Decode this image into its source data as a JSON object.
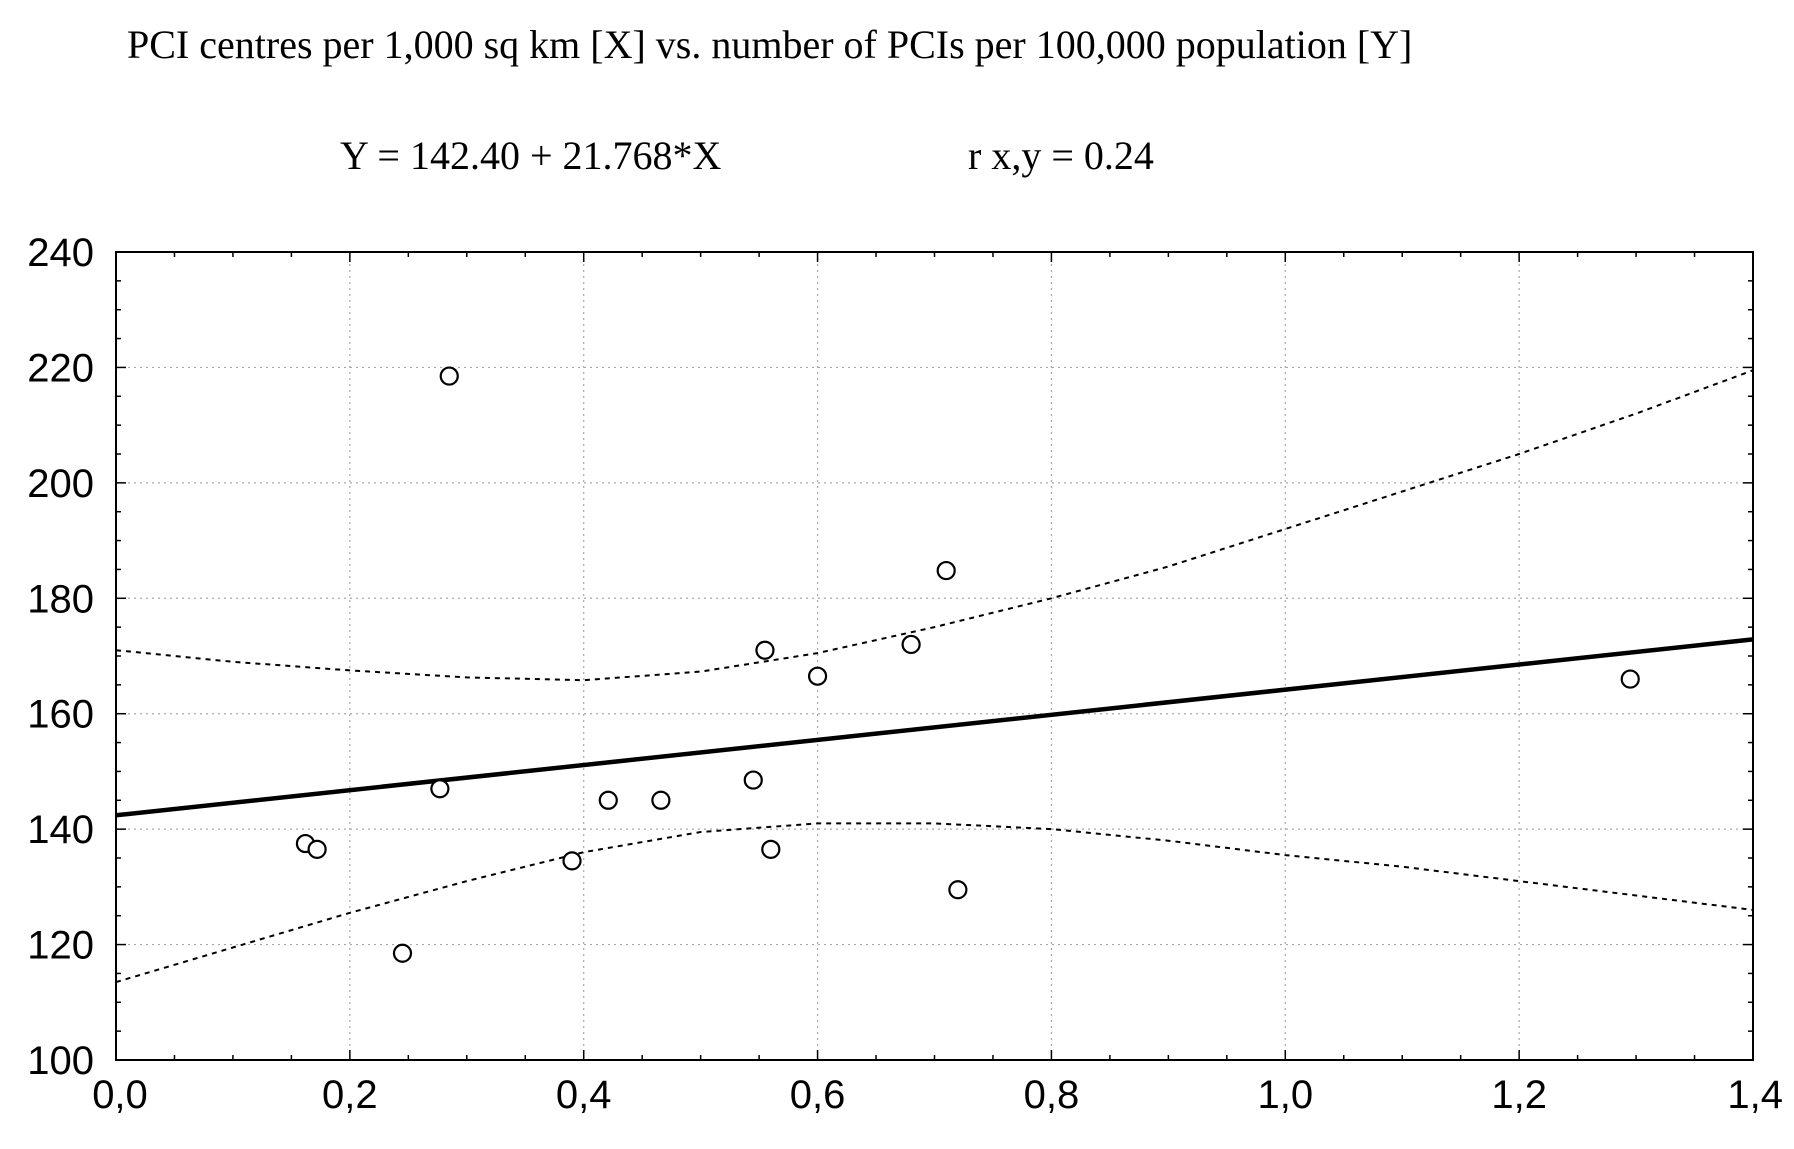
{
  "chart_data": {
    "type": "scatter",
    "title": "PCI centres per 1,000 sq km [X] vs. number of PCIs per 100,000 population [Y]",
    "equation": "Y = 142.40 + 21.768*X",
    "correlation": "r x,y = 0.24",
    "regression": {
      "intercept": 142.4,
      "slope": 21.768
    },
    "xlim": [
      0.0,
      1.4
    ],
    "ylim": [
      100,
      240
    ],
    "xticks": [
      {
        "value": 0.0,
        "label": "0,0"
      },
      {
        "value": 0.2,
        "label": "0,2"
      },
      {
        "value": 0.4,
        "label": "0,4"
      },
      {
        "value": 0.6,
        "label": "0,6"
      },
      {
        "value": 0.8,
        "label": "0,8"
      },
      {
        "value": 1.0,
        "label": "1,0"
      },
      {
        "value": 1.2,
        "label": "1,2"
      },
      {
        "value": 1.4,
        "label": "1,4"
      }
    ],
    "yticks": [
      {
        "value": 100,
        "label": "100"
      },
      {
        "value": 120,
        "label": "120"
      },
      {
        "value": 140,
        "label": "140"
      },
      {
        "value": 160,
        "label": "160"
      },
      {
        "value": 180,
        "label": "180"
      },
      {
        "value": 200,
        "label": "200"
      },
      {
        "value": 220,
        "label": "220"
      },
      {
        "value": 240,
        "label": "240"
      }
    ],
    "grid": true,
    "points": [
      {
        "x": 0.162,
        "y": 137.5
      },
      {
        "x": 0.172,
        "y": 136.5
      },
      {
        "x": 0.245,
        "y": 118.5
      },
      {
        "x": 0.277,
        "y": 147.0
      },
      {
        "x": 0.285,
        "y": 218.5
      },
      {
        "x": 0.39,
        "y": 134.5
      },
      {
        "x": 0.421,
        "y": 145.0
      },
      {
        "x": 0.466,
        "y": 145.0
      },
      {
        "x": 0.545,
        "y": 148.5
      },
      {
        "x": 0.555,
        "y": 171.0
      },
      {
        "x": 0.56,
        "y": 136.5
      },
      {
        "x": 0.6,
        "y": 166.5
      },
      {
        "x": 0.68,
        "y": 172.0
      },
      {
        "x": 0.71,
        "y": 184.8
      },
      {
        "x": 0.72,
        "y": 129.5
      },
      {
        "x": 1.295,
        "y": 166.0
      }
    ],
    "confidence_upper": [
      {
        "x": 0.0,
        "y": 171.0
      },
      {
        "x": 0.1,
        "y": 169.0
      },
      {
        "x": 0.2,
        "y": 167.5
      },
      {
        "x": 0.3,
        "y": 166.3
      },
      {
        "x": 0.4,
        "y": 165.8
      },
      {
        "x": 0.5,
        "y": 167.3
      },
      {
        "x": 0.6,
        "y": 170.5
      },
      {
        "x": 0.7,
        "y": 175.0
      },
      {
        "x": 0.8,
        "y": 180.0
      },
      {
        "x": 0.9,
        "y": 185.5
      },
      {
        "x": 1.0,
        "y": 192.0
      },
      {
        "x": 1.1,
        "y": 198.5
      },
      {
        "x": 1.2,
        "y": 205.0
      },
      {
        "x": 1.3,
        "y": 212.0
      },
      {
        "x": 1.4,
        "y": 219.5
      }
    ],
    "confidence_lower": [
      {
        "x": 0.0,
        "y": 113.5
      },
      {
        "x": 0.1,
        "y": 119.5
      },
      {
        "x": 0.2,
        "y": 125.5
      },
      {
        "x": 0.3,
        "y": 131.0
      },
      {
        "x": 0.4,
        "y": 136.0
      },
      {
        "x": 0.5,
        "y": 139.5
      },
      {
        "x": 0.6,
        "y": 141.0
      },
      {
        "x": 0.7,
        "y": 141.0
      },
      {
        "x": 0.8,
        "y": 140.0
      },
      {
        "x": 0.9,
        "y": 138.0
      },
      {
        "x": 1.0,
        "y": 135.5
      },
      {
        "x": 1.1,
        "y": 133.5
      },
      {
        "x": 1.2,
        "y": 131.0
      },
      {
        "x": 1.3,
        "y": 128.5
      },
      {
        "x": 1.4,
        "y": 126.0
      }
    ]
  }
}
